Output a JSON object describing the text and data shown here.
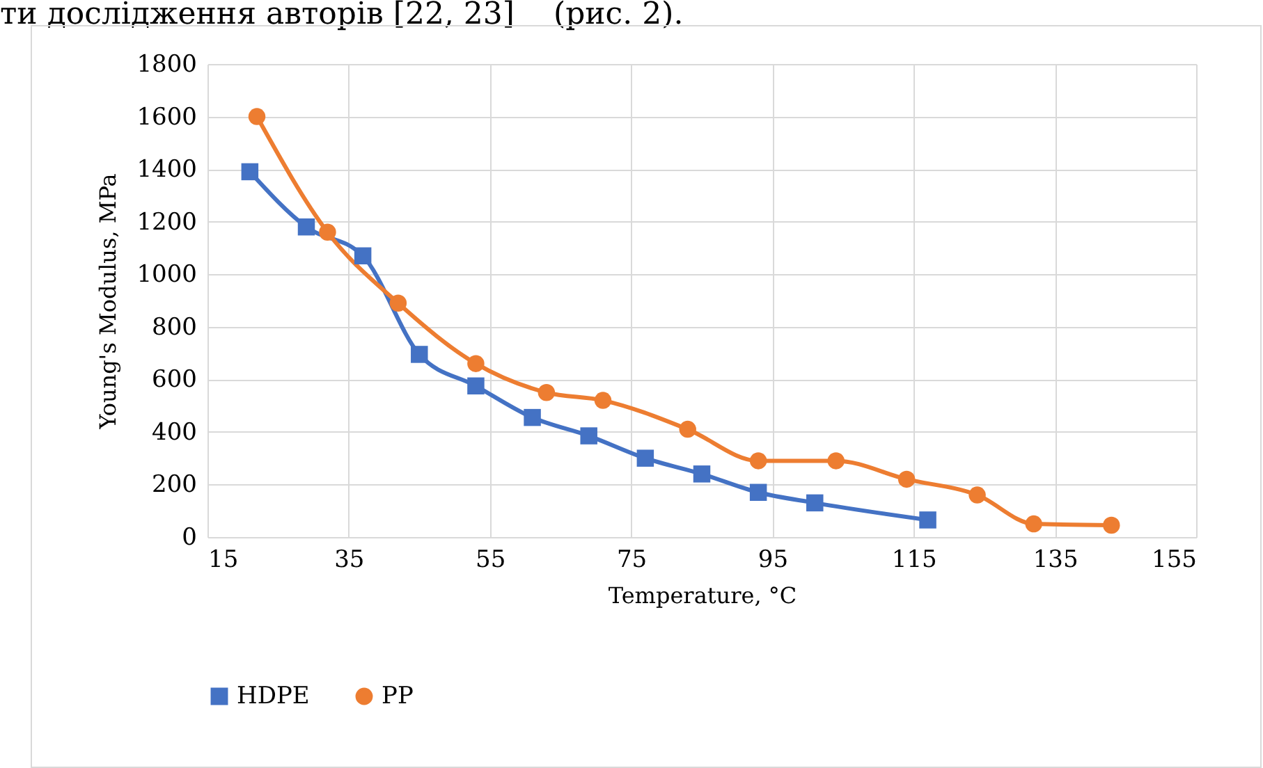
{
  "chart_data": {
    "type": "line",
    "xlabel": "Temperature, °C",
    "ylabel": "Young's Modulus, MPa",
    "annotations": [
      "ти дослідження авторів [22, 23]    (рис. 2)."
    ],
    "series": [
      {
        "name": "HDPE",
        "color": "#4472c4",
        "marker": "square",
        "x": [
          21,
          29,
          37,
          45,
          53,
          61,
          69,
          77,
          85,
          93,
          101,
          117
        ],
        "values": [
          1390,
          1180,
          1070,
          695,
          575,
          455,
          385,
          300,
          240,
          170,
          130,
          65
        ]
      },
      {
        "name": "PP",
        "color": "#ed7d31",
        "marker": "circle",
        "x": [
          22,
          32,
          42,
          53,
          63,
          71,
          83,
          93,
          104,
          114,
          124,
          132,
          143
        ],
        "values": [
          1600,
          1160,
          890,
          660,
          550,
          520,
          410,
          290,
          290,
          220,
          160,
          50,
          45
        ]
      }
    ],
    "xlim": [
      15,
      155
    ],
    "xticks": [
      15,
      35,
      55,
      75,
      95,
      115,
      135,
      155
    ],
    "ylim": [
      0,
      1800
    ],
    "yticks": [
      0,
      200,
      400,
      600,
      800,
      1000,
      1200,
      1400,
      1600,
      1800
    ],
    "grid": true,
    "legend": "bottom",
    "line_style": "solid"
  }
}
